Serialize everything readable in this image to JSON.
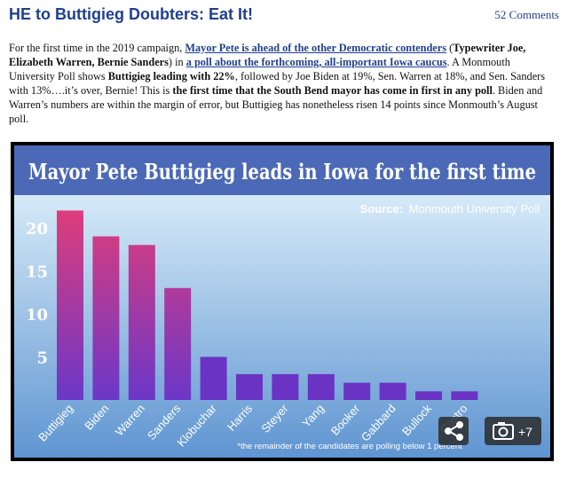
{
  "post": {
    "title": "HE to Buttigieg Doubters: Eat It!",
    "comments": "52 Comments",
    "p1": "For the first time in the 2019 campaign, ",
    "link1": "Mayor Pete is ahead of the other Democratic contenders",
    "p2": " (",
    "b1": "Typewriter Joe, Elizabeth Warren, Bernie Sanders",
    "p3": ") in ",
    "link2": "a poll about the forthcoming, all-important Iowa caucus",
    "p4": ". A Monmouth University Poll shows ",
    "b2": "Buttigieg leading with 22%",
    "p5": ", followed by Joe Biden at 19%, Sen. Warren at 18%, and Sen. Sanders with 13%….it’s over, Bernie! This is ",
    "b3": "the first time that the South Bend mayor has come in first in any poll",
    "p6": ". Biden and Warren’s numbers are within the margin of error, but Buttigieg has nonetheless risen 14 points since Monmouth’s August poll."
  },
  "figure": {
    "photo_count": "+7"
  },
  "colors": {
    "header_bg": "#4b69b6",
    "plot_bg_light": "#d6eaf8",
    "plot_bg_dark": "#5f95d1",
    "bar_top": "#e03d79",
    "bar_bottom": "#6b37c8",
    "bar_short": "#6a33c4",
    "link": "#1f3f8f"
  },
  "chart_data": {
    "type": "bar",
    "title": "Mayor Pete Buttigieg leads in Iowa for the first time",
    "source_label": "Source:",
    "source": "Monmouth University Poll",
    "footnote": "*the remainder of the candidates are polling below 1 percent",
    "categories": [
      "Buttigieg",
      "Biden",
      "Warren",
      "Sanders",
      "Klobuchar",
      "Harris",
      "Steyer",
      "Yang",
      "Booker",
      "Gabbard",
      "Bullock",
      "Castro"
    ],
    "values": [
      22,
      19,
      18,
      13,
      5,
      3,
      3,
      3,
      2,
      2,
      1,
      1
    ],
    "y_ticks": [
      5,
      10,
      15,
      20
    ],
    "ylim": [
      0,
      24
    ],
    "grid": false
  }
}
